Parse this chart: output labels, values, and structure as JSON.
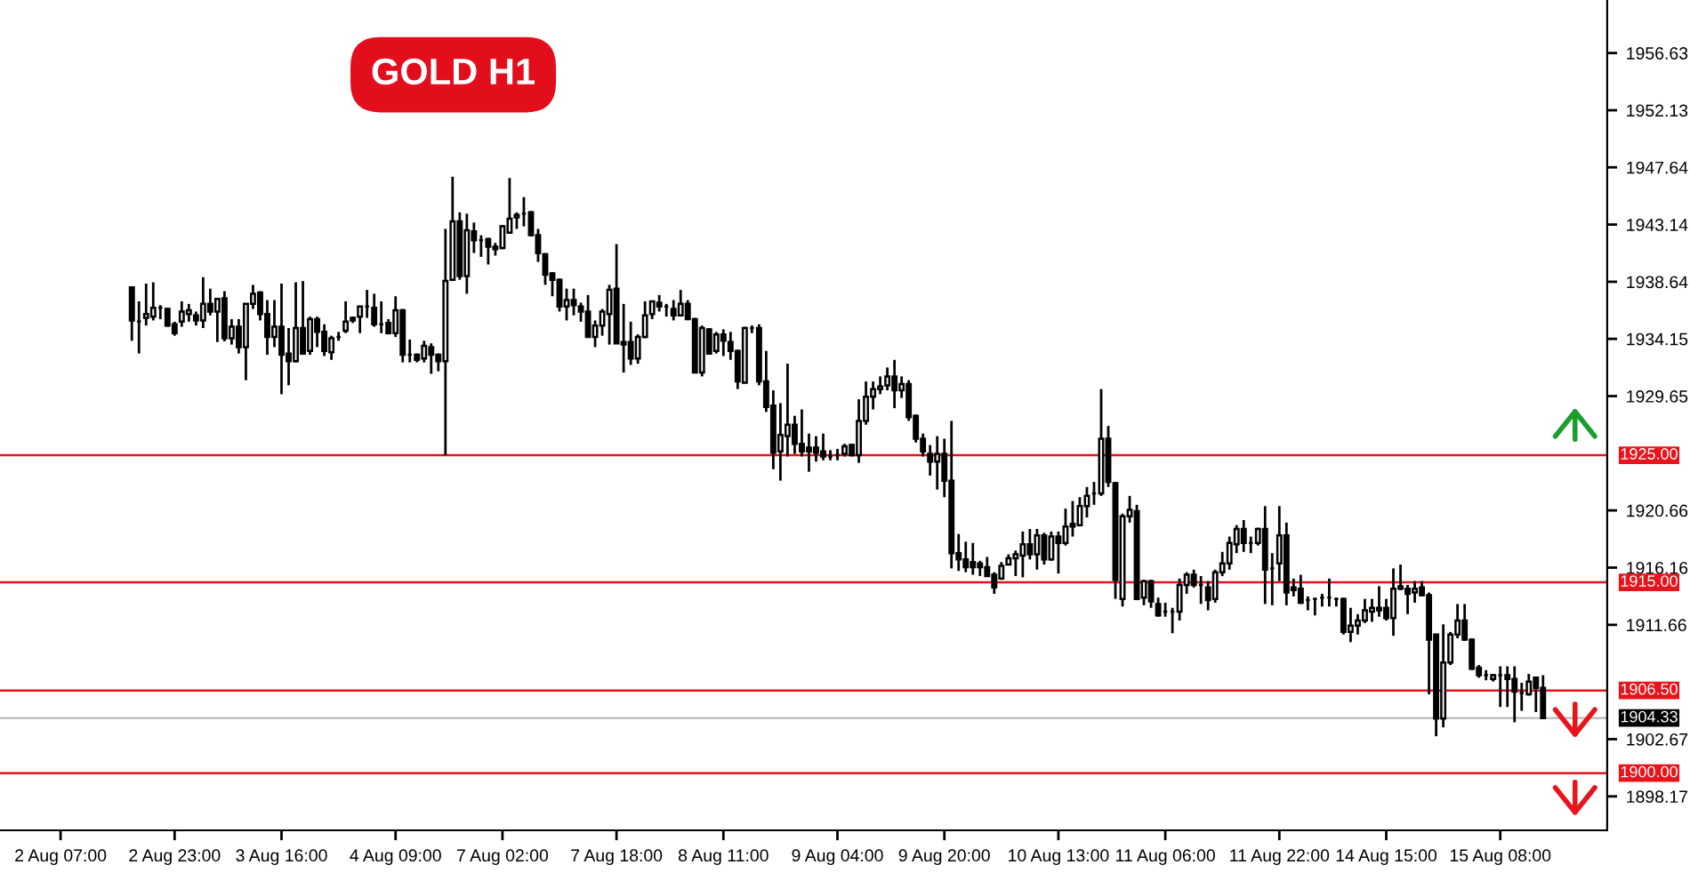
{
  "chart_data": {
    "type": "candlestick",
    "title": "GOLD H1",
    "categories": [
      "2 Aug 07:00",
      null,
      null,
      null,
      null,
      null,
      null,
      null,
      null,
      null,
      null,
      null,
      null,
      null,
      null,
      null,
      "2 Aug 23:00",
      null,
      null,
      null,
      null,
      null,
      null,
      null,
      null,
      null,
      null,
      null,
      null,
      null,
      null,
      "3 Aug 16:00",
      null,
      null,
      null,
      null,
      null,
      null,
      null,
      null,
      null,
      null,
      null,
      null,
      null,
      null,
      null,
      "4 Aug 09:00",
      null,
      null,
      null,
      null,
      null,
      null,
      null,
      null,
      null,
      null,
      null,
      null,
      null,
      null,
      "7 Aug 02:00",
      null,
      null,
      null,
      null,
      null,
      null,
      null,
      null,
      null,
      null,
      null,
      null,
      null,
      null,
      null,
      "7 Aug 18:00",
      null,
      null,
      null,
      null,
      null,
      null,
      null,
      null,
      null,
      null,
      null,
      null,
      null,
      null,
      "8 Aug 11:00",
      null,
      null,
      null,
      null,
      null,
      null,
      null,
      null,
      null,
      null,
      null,
      null,
      null,
      null,
      null,
      "9 Aug 04:00",
      null,
      null,
      null,
      null,
      null,
      null,
      null,
      null,
      null,
      null,
      null,
      null,
      null,
      null,
      "9 Aug 20:00",
      null,
      null,
      null,
      null,
      null,
      null,
      null,
      null,
      null,
      null,
      null,
      null,
      null,
      null,
      null,
      "10 Aug 13:00",
      null,
      null,
      null,
      null,
      null,
      null,
      null,
      null,
      null,
      null,
      null,
      null,
      null,
      null,
      "11 Aug 06:00",
      null,
      null,
      null,
      null,
      null,
      null,
      null,
      null,
      null,
      null,
      null,
      null,
      null,
      null,
      null,
      "11 Aug 22:00",
      null,
      null,
      null,
      null,
      null,
      null,
      null,
      null,
      null,
      null,
      null,
      null,
      null,
      null,
      "14 Aug 15:00",
      null,
      null,
      null,
      null,
      null,
      null,
      null,
      null,
      null,
      null,
      null,
      null,
      null,
      null,
      null,
      "15 Aug 08:00",
      null,
      null,
      null,
      null,
      null,
      null
    ],
    "ohlc": [
      null,
      null,
      null,
      null,
      null,
      null,
      null,
      null,
      null,
      null,
      [
        1938.2,
        1938.2,
        1934.0,
        1935.6
      ],
      [
        1935.5,
        1937.1,
        1933.0,
        1935.5
      ],
      [
        1935.8,
        1938.5,
        1935.2,
        1936.1
      ],
      [
        1935.9,
        1938.6,
        1935.6,
        1936.6
      ],
      [
        1936.6,
        1936.8,
        1935.7,
        1936.6
      ],
      [
        1936.5,
        1936.6,
        1935.1,
        1935.2
      ],
      [
        1935.3,
        1935.5,
        1934.4,
        1934.6
      ],
      [
        1935.5,
        1937.1,
        1935.1,
        1936.3
      ],
      [
        1936.1,
        1936.9,
        1935.5,
        1936.4
      ],
      [
        1936.0,
        1936.3,
        1935.2,
        1935.6
      ],
      [
        1935.6,
        1939.0,
        1935.0,
        1936.9
      ],
      [
        1936.9,
        1938.1,
        1936.0,
        1936.3
      ],
      [
        1936.3,
        1937.35,
        1933.9,
        1937.3
      ],
      [
        1937.35,
        1937.9,
        1933.95,
        1934.2
      ],
      [
        1934.2,
        1935.7,
        1933.7,
        1935.1
      ],
      [
        1935.1,
        1935.7,
        1933.0,
        1933.5
      ],
      [
        1933.5,
        1936.9,
        1930.9,
        1936.9
      ],
      [
        1936.9,
        1938.4,
        1936.5,
        1937.7
      ],
      [
        1937.8,
        1937.9,
        1935.6,
        1936.1
      ],
      [
        1936.1,
        1937.2,
        1932.9,
        1934.3
      ],
      [
        1934.3,
        1937.2,
        1933.5,
        1935.1
      ],
      [
        1935.1,
        1938.5,
        1929.8,
        1932.9
      ],
      [
        1933.0,
        1935.0,
        1930.5,
        1932.4
      ],
      [
        1932.4,
        1938.6,
        1932.3,
        1935.0
      ],
      [
        1935.0,
        1938.7,
        1932.9,
        1933.0
      ],
      [
        1933.2,
        1935.9,
        1932.9,
        1935.7
      ],
      [
        1935.7,
        1935.9,
        1933.5,
        1934.7
      ],
      [
        1934.7,
        1935.3,
        1932.8,
        1933.2
      ],
      [
        1933.1,
        1934.4,
        1932.5,
        1934.2
      ],
      [
        1934.3,
        1934.7,
        1934.0,
        1934.3
      ],
      [
        1934.8,
        1937.1,
        1934.6,
        1935.5
      ],
      [
        1935.8,
        1935.9,
        1935.4,
        1935.6
      ],
      [
        1935.9,
        1936.7,
        1934.6,
        1936.7
      ],
      [
        1936.7,
        1938.0,
        1935.8,
        1936.7
      ],
      [
        1936.6,
        1937.7,
        1935.1,
        1935.3
      ],
      [
        1935.3,
        1937.1,
        1934.6,
        1935.3
      ],
      [
        1935.4,
        1935.7,
        1934.5,
        1934.6
      ],
      [
        1934.6,
        1937.5,
        1934.3,
        1936.4
      ],
      [
        1936.4,
        1936.5,
        1932.3,
        1932.9
      ],
      [
        1932.9,
        1934.1,
        1932.3,
        1932.9
      ],
      [
        1932.9,
        1933.0,
        1932.3,
        1932.5
      ],
      [
        1932.6,
        1934.0,
        1932.3,
        1933.6
      ],
      [
        1933.5,
        1933.8,
        1931.4,
        1932.9
      ],
      [
        1932.9,
        1933.0,
        1931.6,
        1932.4
      ],
      [
        1932.4,
        1942.8,
        1925.0,
        1938.7
      ],
      [
        1938.8,
        1946.9,
        1938.7,
        1943.4
      ],
      [
        1943.4,
        1944.1,
        1938.8,
        1939.1
      ],
      [
        1939.1,
        1944.0,
        1937.7,
        1942.7
      ],
      [
        1942.6,
        1943.3,
        1940.9,
        1941.9
      ],
      [
        1941.9,
        1942.3,
        1940.6,
        1941.9
      ],
      [
        1942.0,
        1942.1,
        1940.0,
        1941.4
      ],
      [
        1941.4,
        1941.7,
        1940.7,
        1941.2
      ],
      [
        1941.3,
        1943.1,
        1941.2,
        1943.0
      ],
      [
        1942.5,
        1946.8,
        1942.5,
        1943.6
      ],
      [
        1943.7,
        1944.1,
        1942.8,
        1943.9
      ],
      [
        1944.0,
        1945.3,
        1943.0,
        1944.0
      ],
      [
        1944.1,
        1944.2,
        1942.2,
        1942.3
      ],
      [
        1942.3,
        1942.8,
        1940.2,
        1940.9
      ],
      [
        1940.8,
        1940.9,
        1938.4,
        1939.2
      ],
      [
        1939.3,
        1939.4,
        1937.5,
        1938.8
      ],
      [
        1938.8,
        1938.9,
        1936.3,
        1936.7
      ],
      [
        1936.7,
        1938.1,
        1935.6,
        1937.2
      ],
      [
        1937.2,
        1938.1,
        1936.0,
        1936.8
      ],
      [
        1936.7,
        1937.0,
        1935.5,
        1936.3
      ],
      [
        1936.3,
        1937.6,
        1934.3,
        1934.3
      ],
      [
        1934.3,
        1935.6,
        1933.5,
        1935.2
      ],
      [
        1935.2,
        1936.5,
        1934.4,
        1936.3
      ],
      [
        1936.1,
        1938.4,
        1933.7,
        1938.0
      ],
      [
        1938.1,
        1941.6,
        1933.8,
        1933.8
      ],
      [
        1933.9,
        1936.9,
        1931.5,
        1933.7
      ],
      [
        1933.9,
        1935.5,
        1932.1,
        1932.6
      ],
      [
        1932.6,
        1934.5,
        1932.2,
        1934.3
      ],
      [
        1934.3,
        1937.1,
        1934.2,
        1936.0
      ],
      [
        1936.1,
        1937.1,
        1935.7,
        1937.1
      ],
      [
        1937.0,
        1937.6,
        1936.3,
        1936.7
      ],
      [
        1936.7,
        1936.9,
        1935.9,
        1936.7
      ],
      [
        1936.5,
        1937.2,
        1935.6,
        1936.0
      ],
      [
        1936.0,
        1938.0,
        1936.0,
        1936.9
      ],
      [
        1936.9,
        1937.2,
        1935.7,
        1935.7
      ],
      [
        1935.7,
        1935.8,
        1931.5,
        1931.5
      ],
      [
        1931.5,
        1935.2,
        1931.2,
        1935.0
      ],
      [
        1934.9,
        1935.0,
        1932.9,
        1933.0
      ],
      [
        1933.2,
        1934.7,
        1933.0,
        1934.5
      ],
      [
        1934.5,
        1934.9,
        1932.8,
        1934.0
      ],
      [
        1933.9,
        1934.7,
        1932.5,
        1933.2
      ],
      [
        1933.2,
        1933.3,
        1930.2,
        1930.8
      ],
      [
        1930.7,
        1935.1,
        1930.7,
        1935.0
      ],
      [
        1935.0,
        1935.2,
        1934.6,
        1935.0
      ],
      [
        1935.0,
        1935.3,
        1930.5,
        1930.8
      ],
      [
        1930.8,
        1933.2,
        1928.4,
        1928.8
      ],
      [
        1928.9,
        1930.1,
        1923.9,
        1925.2
      ],
      [
        1925.3,
        1929.1,
        1923.0,
        1926.6
      ],
      [
        1926.5,
        1932.2,
        1924.9,
        1927.4
      ],
      [
        1927.4,
        1928.1,
        1925.1,
        1925.9
      ],
      [
        1925.9,
        1928.6,
        1924.9,
        1925.3
      ],
      [
        1925.6,
        1926.7,
        1923.7,
        1925.3
      ],
      [
        1925.6,
        1926.5,
        1924.5,
        1925.2
      ],
      [
        1925.3,
        1926.7,
        1924.6,
        1924.9
      ],
      [
        1924.9,
        1925.4,
        1924.6,
        1924.9
      ],
      [
        1925.0,
        1925.5,
        1924.6,
        1925.0
      ],
      [
        1925.1,
        1925.9,
        1924.9,
        1925.7
      ],
      [
        1925.8,
        1925.9,
        1924.9,
        1925.0
      ],
      [
        1925.0,
        1929.4,
        1924.4,
        1927.7
      ],
      [
        1927.7,
        1930.8,
        1927.4,
        1929.6
      ],
      [
        1929.6,
        1930.8,
        1928.6,
        1930.2
      ],
      [
        1930.2,
        1931.2,
        1929.8,
        1930.4
      ],
      [
        1930.5,
        1931.9,
        1930.1,
        1931.2
      ],
      [
        1931.2,
        1932.5,
        1928.7,
        1930.1
      ],
      [
        1930.1,
        1931.2,
        1929.5,
        1930.6
      ],
      [
        1930.6,
        1930.9,
        1927.7,
        1928.0
      ],
      [
        1928.1,
        1928.2,
        1926.0,
        1926.3
      ],
      [
        1926.3,
        1926.7,
        1924.9,
        1925.3
      ],
      [
        1925.1,
        1925.8,
        1923.4,
        1924.5
      ],
      [
        1924.5,
        1926.5,
        1922.3,
        1925.1
      ],
      [
        1925.1,
        1926.3,
        1921.7,
        1923.0
      ],
      [
        1923.0,
        1927.7,
        1916.1,
        1917.3
      ],
      [
        1917.3,
        1918.8,
        1915.9,
        1916.8
      ],
      [
        1916.8,
        1918.2,
        1915.8,
        1916.2
      ],
      [
        1916.6,
        1918.1,
        1915.6,
        1916.2
      ],
      [
        1916.5,
        1916.7,
        1915.5,
        1916.2
      ],
      [
        1916.2,
        1917.0,
        1915.5,
        1915.5
      ],
      [
        1915.6,
        1915.8,
        1914.1,
        1914.6
      ],
      [
        1915.3,
        1916.6,
        1915.2,
        1916.3
      ],
      [
        1916.4,
        1917.2,
        1916.4,
        1916.9
      ],
      [
        1916.9,
        1917.5,
        1915.5,
        1917.2
      ],
      [
        1917.1,
        1919.0,
        1915.4,
        1918.0
      ],
      [
        1918.0,
        1919.2,
        1916.8,
        1917.2
      ],
      [
        1917.2,
        1919.2,
        1916.0,
        1918.7
      ],
      [
        1918.7,
        1918.9,
        1916.4,
        1916.8
      ],
      [
        1916.8,
        1919.0,
        1916.7,
        1918.6
      ],
      [
        1918.6,
        1919.0,
        1915.7,
        1918.1
      ],
      [
        1918.1,
        1920.8,
        1917.9,
        1919.4
      ],
      [
        1919.6,
        1921.4,
        1918.6,
        1919.4
      ],
      [
        1919.5,
        1921.7,
        1919.4,
        1921.0
      ],
      [
        1921.0,
        1922.5,
        1920.1,
        1921.8
      ],
      [
        1922.0,
        1922.9,
        1921.1,
        1922.0
      ],
      [
        1922.0,
        1930.2,
        1921.8,
        1926.3
      ],
      [
        1926.3,
        1927.3,
        1922.5,
        1922.9
      ],
      [
        1922.8,
        1922.9,
        1913.7,
        1915.2
      ],
      [
        1913.7,
        1920.4,
        1913.1,
        1920.2
      ],
      [
        1920.2,
        1921.8,
        1919.7,
        1920.7
      ],
      [
        1920.6,
        1921.1,
        1913.6,
        1913.7
      ],
      [
        1913.8,
        1915.2,
        1913.2,
        1915.1
      ],
      [
        1915.1,
        1915.2,
        1913.0,
        1913.5
      ],
      [
        1913.3,
        1913.8,
        1912.3,
        1912.4
      ],
      [
        1912.7,
        1913.4,
        1912.3,
        1912.7
      ],
      [
        1912.7,
        1913.0,
        1911.0,
        1912.7
      ],
      [
        1912.7,
        1915.3,
        1912.0,
        1914.8
      ],
      [
        1914.8,
        1915.8,
        1914.1,
        1915.6
      ],
      [
        1915.6,
        1916.0,
        1914.6,
        1914.8
      ],
      [
        1914.8,
        1915.5,
        1913.3,
        1914.8
      ],
      [
        1914.6,
        1915.1,
        1912.8,
        1913.6
      ],
      [
        1913.7,
        1916.0,
        1913.4,
        1915.8
      ],
      [
        1915.8,
        1917.4,
        1915.5,
        1916.5
      ],
      [
        1916.5,
        1918.6,
        1916.0,
        1918.1
      ],
      [
        1918.0,
        1919.5,
        1917.3,
        1919.2
      ],
      [
        1919.2,
        1919.9,
        1917.4,
        1918.1
      ],
      [
        1918.1,
        1918.6,
        1917.3,
        1918.1
      ],
      [
        1918.1,
        1919.3,
        1917.9,
        1919.2
      ],
      [
        1919.2,
        1921.0,
        1913.3,
        1916.0
      ],
      [
        1916.1,
        1917.3,
        1913.2,
        1916.1
      ],
      [
        1916.5,
        1921.0,
        1915.1,
        1918.7
      ],
      [
        1918.7,
        1919.7,
        1913.2,
        1914.2
      ],
      [
        1914.6,
        1915.3,
        1913.9,
        1914.4
      ],
      [
        1914.5,
        1915.6,
        1913.3,
        1913.4
      ],
      [
        1913.6,
        1913.9,
        1912.8,
        1913.6
      ],
      [
        1913.7,
        1913.8,
        1912.4,
        1913.7
      ],
      [
        1913.8,
        1914.1,
        1913.1,
        1913.8
      ],
      [
        1913.8,
        1915.3,
        1913.1,
        1913.8
      ],
      [
        1913.7,
        1913.8,
        1913.1,
        1913.7
      ],
      [
        1913.7,
        1913.8,
        1910.9,
        1911.1
      ],
      [
        1911.1,
        1913.0,
        1910.3,
        1911.6
      ],
      [
        1911.6,
        1912.5,
        1910.9,
        1912.0
      ],
      [
        1912.0,
        1913.7,
        1911.8,
        1912.8
      ],
      [
        1912.7,
        1913.7,
        1911.9,
        1913.0
      ],
      [
        1912.8,
        1914.7,
        1912.3,
        1913.0
      ],
      [
        1913.0,
        1913.7,
        1912.0,
        1912.2
      ],
      [
        1912.2,
        1916.1,
        1910.8,
        1914.5
      ],
      [
        1914.5,
        1916.4,
        1914.4,
        1914.7
      ],
      [
        1914.5,
        1914.8,
        1912.5,
        1914.1
      ],
      [
        1914.2,
        1915.1,
        1913.4,
        1914.5
      ],
      [
        1914.6,
        1915.1,
        1913.9,
        1914.0
      ],
      [
        1914.0,
        1914.2,
        1906.2,
        1910.5
      ],
      [
        1910.9,
        1910.9,
        1902.9,
        1904.3
      ],
      [
        1904.3,
        1911.7,
        1903.6,
        1908.7
      ],
      [
        1908.7,
        1911.1,
        1908.5,
        1910.9
      ],
      [
        1910.9,
        1913.3,
        1910.6,
        1912.0
      ],
      [
        1912.0,
        1913.3,
        1910.4,
        1910.5
      ],
      [
        1910.5,
        1910.6,
        1908.1,
        1908.2
      ],
      [
        1908.3,
        1908.5,
        1907.5,
        1907.7
      ],
      [
        1907.7,
        1908.1,
        1907.3,
        1907.7
      ],
      [
        1907.4,
        1907.8,
        1907.2,
        1907.7
      ],
      [
        1907.7,
        1908.4,
        1905.2,
        1907.7
      ],
      [
        1907.7,
        1908.4,
        1905.2,
        1907.4
      ],
      [
        1907.4,
        1908.4,
        1904.0,
        1906.4
      ],
      [
        1906.3,
        1907.1,
        1904.9,
        1906.3
      ],
      [
        1906.2,
        1907.8,
        1906.1,
        1907.2
      ],
      [
        1907.5,
        1907.6,
        1904.8,
        1906.7
      ],
      [
        1906.7,
        1907.7,
        1904.3,
        1904.33
      ]
    ],
    "ylim": [
      1895.5,
      1960.8
    ],
    "yticks": [
      1898.17,
      1902.67,
      1911.66,
      1916.16,
      1920.66,
      1929.65,
      1934.15,
      1938.64,
      1943.14,
      1947.64,
      1952.13,
      1956.63
    ],
    "ref_lines": [
      {
        "axis": "y",
        "value": 1925.0,
        "label": "1925.00",
        "color": "#e8141b"
      },
      {
        "axis": "y",
        "value": 1915.0,
        "label": "1915.00",
        "color": "#e8141b"
      },
      {
        "axis": "y",
        "value": 1906.5,
        "label": "1906.50",
        "color": "#e8141b"
      },
      {
        "axis": "y",
        "value": 1904.33,
        "label": "1904.33",
        "color": "#c0c0c0"
      },
      {
        "axis": "y",
        "value": 1900.0,
        "label": "1900.00",
        "color": "#e8141b"
      }
    ],
    "grid": false,
    "legend": false
  }
}
